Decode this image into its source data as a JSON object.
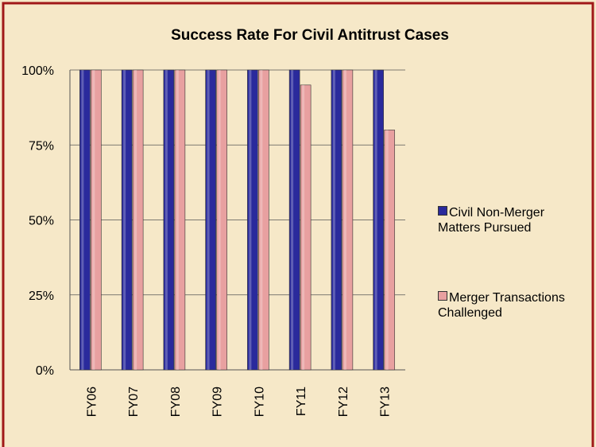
{
  "chart_data": {
    "type": "bar",
    "title": "Success Rate For Civil Antitrust Cases",
    "categories": [
      "FY06",
      "FY07",
      "FY08",
      "FY09",
      "FY10",
      "FY11",
      "FY12",
      "FY13"
    ],
    "series": [
      {
        "name": "Civil Non-Merger Matters Pursued",
        "color": "#2a2a9c",
        "values": [
          100,
          100,
          100,
          100,
          100,
          100,
          100,
          100
        ]
      },
      {
        "name": "Merger Transactions Challenged",
        "color": "#e8a0a0",
        "values": [
          100,
          100,
          100,
          100,
          100,
          95,
          100,
          80
        ]
      }
    ],
    "ylim": [
      0,
      100
    ],
    "yticks": [
      {
        "value": 0,
        "label": "0%"
      },
      {
        "value": 25,
        "label": "25%"
      },
      {
        "value": 50,
        "label": "50%"
      },
      {
        "value": 75,
        "label": "75%"
      },
      {
        "value": 100,
        "label": "100%"
      }
    ],
    "grid": true,
    "legend": "right"
  }
}
